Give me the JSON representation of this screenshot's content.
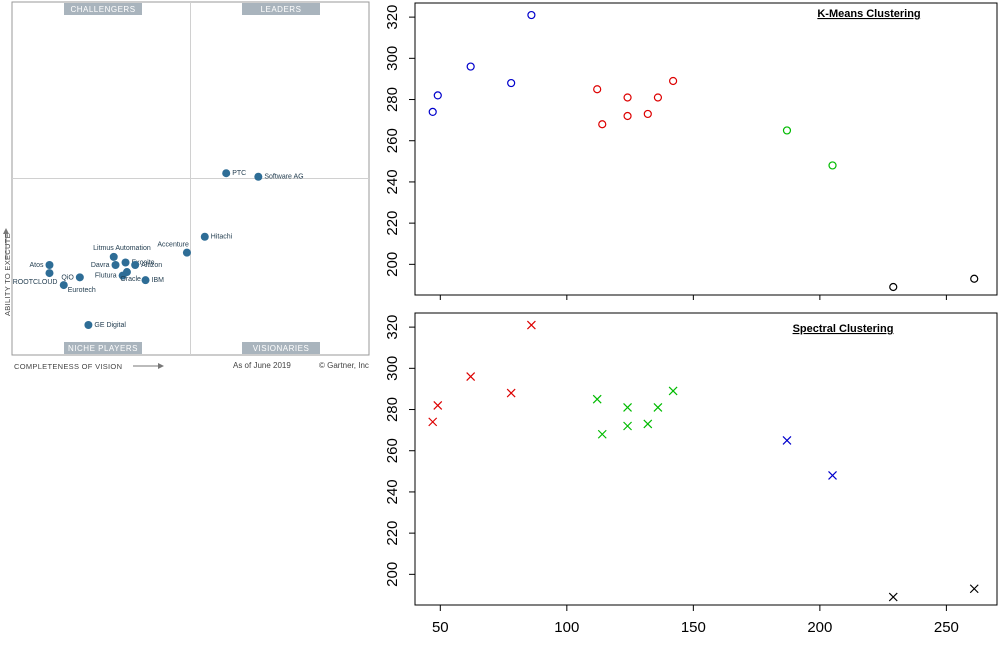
{
  "chart_data": [
    {
      "type": "scatter",
      "quadrants": {
        "top_left": "CHALLENGERS",
        "top_right": "LEADERS",
        "bottom_left": "NICHE PLAYERS",
        "bottom_right": "VISIONARIES"
      },
      "xlabel": "COMPLETENESS OF VISION",
      "ylabel": "ABILITY TO EXECUTE",
      "footer_date": "As of June 2019",
      "footer_source": "© Gartner, Inc",
      "point_color": "#2e6d96",
      "vendors": [
        {
          "name": "PTC",
          "x": 0.6,
          "y": 0.515
        },
        {
          "name": "Software AG",
          "x": 0.69,
          "y": 0.505
        },
        {
          "name": "Hitachi",
          "x": 0.54,
          "y": 0.335
        },
        {
          "name": "Accenture",
          "x": 0.49,
          "y": 0.29
        },
        {
          "name": "Litmus Automation",
          "x": 0.285,
          "y": 0.278
        },
        {
          "name": "Davra",
          "x": 0.29,
          "y": 0.255
        },
        {
          "name": "Exosite",
          "x": 0.318,
          "y": 0.262
        },
        {
          "name": "Altizon",
          "x": 0.345,
          "y": 0.255
        },
        {
          "name": "Flutura",
          "x": 0.31,
          "y": 0.225
        },
        {
          "name": "Oracle",
          "x": 0.322,
          "y": 0.235
        },
        {
          "name": "IBM",
          "x": 0.374,
          "y": 0.212
        },
        {
          "name": "Atos",
          "x": 0.105,
          "y": 0.255
        },
        {
          "name": "QiO",
          "x": 0.19,
          "y": 0.22
        },
        {
          "name": "ROOTCLOUD",
          "x": 0.105,
          "y": 0.232
        },
        {
          "name": "Eurotech",
          "x": 0.145,
          "y": 0.198
        },
        {
          "name": "GE Digital",
          "x": 0.214,
          "y": 0.085
        }
      ]
    },
    {
      "type": "scatter",
      "title": "K-Means Clustering",
      "xlim": [
        40,
        270
      ],
      "ylim": [
        189,
        322
      ],
      "yticks": [
        200,
        220,
        240,
        260,
        280,
        300,
        320
      ],
      "marker": "circle",
      "series": [
        {
          "color": "#0000cc",
          "x": [
            47,
            49,
            62,
            78,
            86
          ],
          "y": [
            274,
            282,
            296,
            288,
            321
          ]
        },
        {
          "color": "#dd0000",
          "x": [
            112,
            114,
            124,
            124,
            132,
            136,
            142
          ],
          "y": [
            285,
            268,
            281,
            272,
            273,
            281,
            289
          ]
        },
        {
          "color": "#00bb00",
          "x": [
            187,
            205
          ],
          "y": [
            265,
            248
          ]
        },
        {
          "color": "#000000",
          "x": [
            229,
            261
          ],
          "y": [
            189,
            193
          ]
        }
      ]
    },
    {
      "type": "scatter",
      "title": "Spectral Clustering",
      "xlim": [
        40,
        270
      ],
      "ylim": [
        189,
        322
      ],
      "xticks": [
        50,
        100,
        150,
        200,
        250
      ],
      "yticks": [
        200,
        220,
        240,
        260,
        280,
        300,
        320
      ],
      "marker": "cross",
      "series": [
        {
          "color": "#dd0000",
          "x": [
            47,
            49,
            62,
            78,
            86
          ],
          "y": [
            274,
            282,
            296,
            288,
            321
          ]
        },
        {
          "color": "#00bb00",
          "x": [
            112,
            114,
            124,
            124,
            132,
            136,
            142
          ],
          "y": [
            285,
            268,
            281,
            272,
            273,
            281,
            289
          ]
        },
        {
          "color": "#0000cc",
          "x": [
            187,
            205
          ],
          "y": [
            265,
            248
          ]
        },
        {
          "color": "#000000",
          "x": [
            229,
            261
          ],
          "y": [
            189,
            193
          ]
        }
      ]
    }
  ]
}
